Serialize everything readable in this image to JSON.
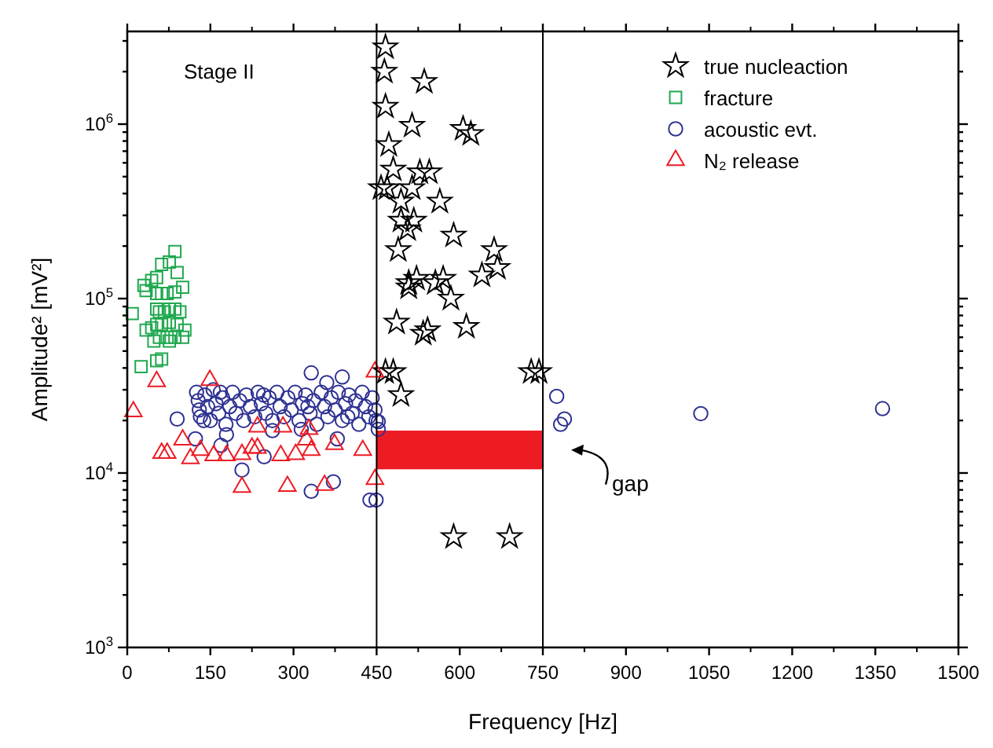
{
  "chart_data": {
    "type": "scatter",
    "xlabel": "Frequency [Hz]",
    "ylabel": "Amplitude² [mV²]",
    "log": "y",
    "legend": "top right",
    "xlim": [
      0,
      1500
    ],
    "xticks": [
      0,
      150,
      300,
      450,
      600,
      750,
      900,
      1050,
      1200,
      1350,
      1500
    ],
    "ylim": [
      1000,
      3400000
    ],
    "yticks": [
      {
        "value": 1000,
        "label": "10$^{3}$"
      },
      {
        "value": 2000,
        "label": null
      },
      {
        "value": 3000,
        "label": null
      },
      {
        "value": 4000,
        "label": null
      },
      {
        "value": 5000,
        "label": null
      },
      {
        "value": 6000,
        "label": null
      },
      {
        "value": 7000,
        "label": null
      },
      {
        "value": 8000,
        "label": null
      },
      {
        "value": 9000,
        "label": null
      },
      {
        "value": 10000,
        "label": "10$^{4}$"
      },
      {
        "value": 20000,
        "label": null
      },
      {
        "value": 30000,
        "label": null
      },
      {
        "value": 40000,
        "label": null
      },
      {
        "value": 50000,
        "label": null
      },
      {
        "value": 60000,
        "label": null
      },
      {
        "value": 70000,
        "label": null
      },
      {
        "value": 80000,
        "label": null
      },
      {
        "value": 90000,
        "label": null
      },
      {
        "value": 100000,
        "label": "10$^{5}$"
      },
      {
        "value": 200000,
        "label": null
      },
      {
        "value": 300000,
        "label": null
      },
      {
        "value": 400000,
        "label": null
      },
      {
        "value": 500000,
        "label": null
      },
      {
        "value": 600000,
        "label": null
      },
      {
        "value": 700000,
        "label": null
      },
      {
        "value": 800000,
        "label": null
      },
      {
        "value": 900000,
        "label": null
      },
      {
        "value": 1000000,
        "label": "10$^{6}$"
      },
      {
        "value": 2000000,
        "label": null
      },
      {
        "value": 3000000,
        "label": null
      }
    ],
    "ref_lines": [
      {
        "axis": "x",
        "value": 450,
        "color": "#000000"
      },
      {
        "axis": "x",
        "value": 750,
        "color": "#000000"
      }
    ],
    "annotations": [
      "Stage II",
      "gap"
    ],
    "bands": [
      {
        "axis": "y",
        "from": 10500,
        "to": 17500,
        "color": "#ed1c24"
      }
    ],
    "series": [
      {
        "name": "true nucleaction",
        "color": "#000000",
        "marker": "star",
        "x": [
          466,
          464,
          466,
          472,
          458,
          469,
          480,
          536,
          514,
          494,
          506,
          494,
          517,
          489,
          508,
          514,
          528,
          545,
          564,
          522,
          589,
          606,
          620,
          662,
          668,
          640,
          612,
          584,
          534,
          508,
          466,
          480,
          494,
          729,
          743,
          589,
          690,
          486,
          556,
          542,
          570
        ],
        "values": [
          2760000,
          2000000,
          1260000,
          760000,
          430000,
          430000,
          550000,
          1750000,
          980000,
          360000,
          250000,
          280000,
          280000,
          190000,
          123000,
          430000,
          530000,
          530000,
          360000,
          130000,
          230000,
          940000,
          880000,
          190000,
          150000,
          136000,
          69000,
          100000,
          63000,
          116000,
          38000,
          38000,
          28000,
          38000,
          38000,
          4300,
          4300,
          73000,
          123000,
          66000,
          130000
        ]
      },
      {
        "name": "fracture",
        "color": "#1fa84f",
        "marker": "square",
        "x": [
          9,
          25,
          53,
          62,
          30,
          34,
          44,
          53,
          62,
          76,
          86,
          90,
          100,
          53,
          62,
          72,
          86,
          53,
          58,
          67,
          76,
          86,
          95,
          34,
          44,
          53,
          62,
          76,
          90,
          58,
          72,
          86,
          100,
          104,
          48,
          76
        ],
        "values": [
          82000,
          40700,
          44000,
          45000,
          119000,
          111000,
          127000,
          132000,
          157000,
          162000,
          186000,
          141000,
          116000,
          107000,
          107000,
          107000,
          109000,
          87000,
          84000,
          84000,
          87000,
          87000,
          84000,
          66000,
          68000,
          71000,
          71000,
          73000,
          71000,
          60000,
          60000,
          60000,
          60000,
          66000,
          57000,
          57000
        ]
      },
      {
        "name": "acoustic evt.",
        "color": "#2e3192",
        "marker": "circle",
        "x": [
          775,
          789,
          782,
          1035,
          1363,
          207,
          247,
          332,
          372,
          438,
          449,
          332,
          388,
          360,
          90,
          169,
          123,
          179,
          262,
          314,
          379,
          453,
          453,
          125,
          128,
          130,
          132,
          140,
          145,
          150,
          155,
          160,
          165,
          172,
          178,
          185,
          190,
          196,
          203,
          210,
          215,
          222,
          230,
          236,
          242,
          250,
          256,
          262,
          270,
          276,
          283,
          290,
          296,
          303,
          310,
          316,
          322,
          330,
          336,
          342,
          350,
          356,
          362,
          368,
          375,
          381,
          388,
          394,
          400,
          406,
          412,
          418,
          424,
          430,
          436,
          442,
          447,
          449,
          138,
          168,
          246,
          326,
          398
        ],
        "values": [
          27500,
          20400,
          19000,
          21900,
          23400,
          10400,
          12400,
          7850,
          8900,
          7000,
          7000,
          37500,
          35500,
          33000,
          20400,
          14400,
          15700,
          16600,
          17500,
          17800,
          15700,
          17800,
          19700,
          29000,
          26000,
          23000,
          21000,
          28000,
          24000,
          20000,
          30000,
          25000,
          22000,
          27000,
          19000,
          24000,
          29000,
          22000,
          26000,
          20000,
          28000,
          24000,
          21000,
          29000,
          25000,
          22000,
          27000,
          20000,
          29000,
          24000,
          21000,
          27000,
          23000,
          29000,
          20000,
          25000,
          28000,
          22000,
          26000,
          19000,
          29000,
          24000,
          21000,
          27000,
          23000,
          29000,
          20000,
          25000,
          28000,
          22000,
          26000,
          19000,
          29000,
          24000,
          21000,
          27000,
          23000,
          20000,
          20000,
          29000,
          28000,
          24000,
          21000
        ]
      },
      {
        "name": "N₂ release",
        "color": "#ed1c24",
        "marker": "triangle",
        "x": [
          11,
          53,
          149,
          62,
          72,
          100,
          114,
          132,
          156,
          179,
          207,
          225,
          235,
          277,
          304,
          332,
          323,
          374,
          425,
          207,
          289,
          356,
          447,
          447,
          235,
          281,
          328
        ],
        "values": [
          22500,
          33500,
          34000,
          13000,
          13000,
          15500,
          12100,
          13500,
          12600,
          12600,
          12800,
          13900,
          13900,
          12600,
          12800,
          13500,
          15500,
          14600,
          13500,
          8300,
          8400,
          8500,
          38000,
          9200,
          18400,
          18400,
          17800
        ]
      }
    ]
  }
}
